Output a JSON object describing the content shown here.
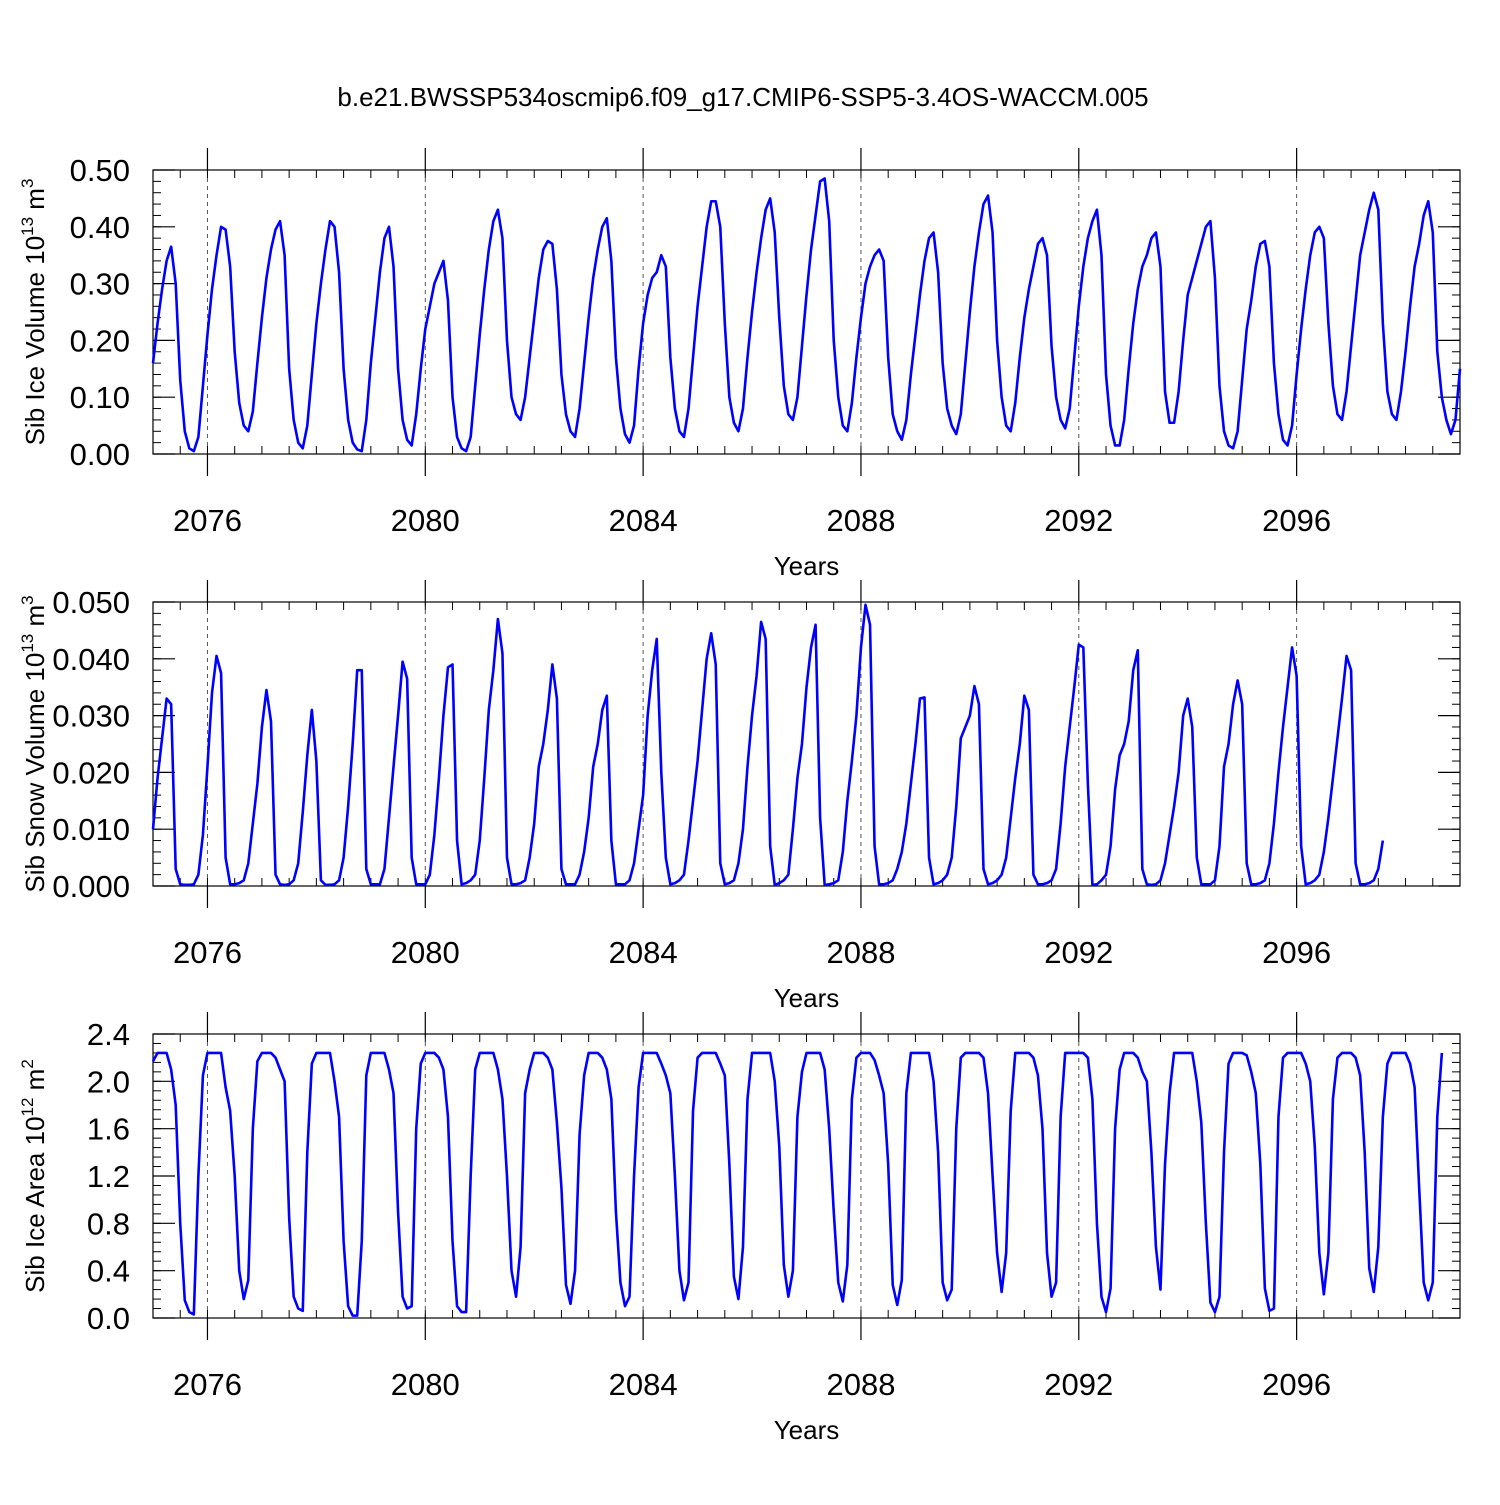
{
  "title": "b.e21.BWSSP534oscmip6.f09_g17.CMIP6-SSP5-3.4OS-WACCM.005",
  "colors": {
    "line": "#0000ff",
    "axis": "#000000",
    "grid": "#555555"
  },
  "chart_data": [
    {
      "type": "line",
      "id": "ice-volume",
      "ylabel": {
        "text": "Sib Ice Volume 10",
        "exp": "13",
        "unit": " m",
        "unit_exp": "3"
      },
      "xlabel": "Years",
      "xlim": [
        2075.0,
        2099.0
      ],
      "ylim": [
        0.0,
        0.5
      ],
      "yticks": [
        0.0,
        0.1,
        0.2,
        0.3,
        0.4,
        0.5
      ],
      "ytick_labels": [
        "0.00",
        "0.10",
        "0.20",
        "0.30",
        "0.40",
        "0.50"
      ],
      "xticks": [
        2076,
        2080,
        2084,
        2088,
        2092,
        2096
      ],
      "xtick_labels": [
        "2076",
        "2080",
        "2084",
        "2088",
        "2092",
        "2096"
      ],
      "grid_x": [
        2076,
        2080,
        2084,
        2088,
        2092,
        2096
      ],
      "start": 2075.0,
      "step": 0.0833333,
      "series": [
        {
          "name": "Sib Ice Volume",
          "values": [
            0.16,
            0.23,
            0.29,
            0.34,
            0.365,
            0.3,
            0.13,
            0.04,
            0.01,
            0.005,
            0.03,
            0.12,
            0.21,
            0.29,
            0.35,
            0.4,
            0.395,
            0.33,
            0.18,
            0.09,
            0.05,
            0.04,
            0.075,
            0.16,
            0.24,
            0.31,
            0.36,
            0.395,
            0.41,
            0.35,
            0.15,
            0.06,
            0.02,
            0.01,
            0.05,
            0.14,
            0.23,
            0.3,
            0.36,
            0.41,
            0.4,
            0.32,
            0.15,
            0.06,
            0.02,
            0.008,
            0.005,
            0.06,
            0.16,
            0.24,
            0.32,
            0.38,
            0.4,
            0.33,
            0.15,
            0.06,
            0.025,
            0.015,
            0.07,
            0.15,
            0.22,
            0.26,
            0.3,
            0.32,
            0.34,
            0.27,
            0.1,
            0.03,
            0.01,
            0.005,
            0.03,
            0.12,
            0.21,
            0.29,
            0.36,
            0.41,
            0.43,
            0.38,
            0.2,
            0.1,
            0.07,
            0.06,
            0.1,
            0.17,
            0.24,
            0.31,
            0.36,
            0.375,
            0.37,
            0.29,
            0.14,
            0.07,
            0.04,
            0.03,
            0.08,
            0.16,
            0.24,
            0.31,
            0.36,
            0.4,
            0.415,
            0.34,
            0.17,
            0.08,
            0.035,
            0.02,
            0.05,
            0.15,
            0.23,
            0.28,
            0.31,
            0.32,
            0.35,
            0.33,
            0.17,
            0.08,
            0.04,
            0.03,
            0.08,
            0.17,
            0.26,
            0.33,
            0.4,
            0.445,
            0.445,
            0.4,
            0.23,
            0.1,
            0.055,
            0.04,
            0.08,
            0.17,
            0.25,
            0.32,
            0.38,
            0.43,
            0.45,
            0.39,
            0.24,
            0.12,
            0.07,
            0.06,
            0.1,
            0.19,
            0.28,
            0.36,
            0.42,
            0.48,
            0.485,
            0.41,
            0.2,
            0.1,
            0.05,
            0.04,
            0.09,
            0.17,
            0.24,
            0.3,
            0.33,
            0.35,
            0.36,
            0.34,
            0.17,
            0.07,
            0.04,
            0.025,
            0.06,
            0.14,
            0.21,
            0.28,
            0.34,
            0.38,
            0.39,
            0.32,
            0.16,
            0.08,
            0.05,
            0.035,
            0.07,
            0.16,
            0.25,
            0.33,
            0.39,
            0.44,
            0.455,
            0.39,
            0.2,
            0.1,
            0.05,
            0.04,
            0.09,
            0.17,
            0.24,
            0.29,
            0.33,
            0.37,
            0.38,
            0.35,
            0.19,
            0.1,
            0.06,
            0.045,
            0.08,
            0.17,
            0.26,
            0.33,
            0.38,
            0.41,
            0.43,
            0.35,
            0.14,
            0.05,
            0.015,
            0.015,
            0.06,
            0.15,
            0.23,
            0.29,
            0.33,
            0.35,
            0.38,
            0.39,
            0.33,
            0.11,
            0.055,
            0.055,
            0.11,
            0.2,
            0.28,
            0.31,
            0.34,
            0.37,
            0.4,
            0.41,
            0.31,
            0.12,
            0.04,
            0.015,
            0.01,
            0.04,
            0.13,
            0.22,
            0.27,
            0.33,
            0.37,
            0.375,
            0.33,
            0.16,
            0.07,
            0.025,
            0.015,
            0.05,
            0.14,
            0.22,
            0.29,
            0.35,
            0.39,
            0.4,
            0.38,
            0.23,
            0.12,
            0.07,
            0.06,
            0.11,
            0.19,
            0.27,
            0.35,
            0.39,
            0.43,
            0.46,
            0.43,
            0.23,
            0.11,
            0.07,
            0.06,
            0.11,
            0.18,
            0.26,
            0.33,
            0.37,
            0.42,
            0.445,
            0.39,
            0.18,
            0.1,
            0.06,
            0.035,
            0.06,
            0.15
          ]
        }
      ]
    },
    {
      "type": "line",
      "id": "snow-volume",
      "ylabel": {
        "text": "Sib Snow Volume 10",
        "exp": "13",
        "unit": " m",
        "unit_exp": "3"
      },
      "xlabel": "Years",
      "xlim": [
        2075.0,
        2099.0
      ],
      "ylim": [
        0.0,
        0.05
      ],
      "yticks": [
        0.0,
        0.01,
        0.02,
        0.03,
        0.04,
        0.05
      ],
      "ytick_labels": [
        "0.000",
        "0.010",
        "0.020",
        "0.030",
        "0.040",
        "0.050"
      ],
      "xticks": [
        2076,
        2080,
        2084,
        2088,
        2092,
        2096
      ],
      "xtick_labels": [
        "2076",
        "2080",
        "2084",
        "2088",
        "2092",
        "2096"
      ],
      "grid_x": [
        2076,
        2080,
        2084,
        2088,
        2092,
        2096
      ],
      "start": 2075.0,
      "step": 0.0833333,
      "series": [
        {
          "name": "Sib Snow Volume",
          "values": [
            0.01,
            0.019,
            0.026,
            0.033,
            0.032,
            0.003,
            0.0003,
            0.0002,
            0.0002,
            0.0003,
            0.002,
            0.009,
            0.021,
            0.034,
            0.0405,
            0.0375,
            0.005,
            0.0003,
            0.0003,
            0.0005,
            0.001,
            0.004,
            0.011,
            0.018,
            0.028,
            0.0345,
            0.029,
            0.002,
            0.0003,
            0.0002,
            0.0003,
            0.001,
            0.004,
            0.013,
            0.023,
            0.031,
            0.022,
            0.001,
            0.0002,
            0.0002,
            0.0003,
            0.001,
            0.005,
            0.014,
            0.025,
            0.038,
            0.038,
            0.003,
            0.0003,
            0.0003,
            0.0003,
            0.003,
            0.012,
            0.021,
            0.03,
            0.0395,
            0.0365,
            0.005,
            0.0003,
            0.0003,
            0.0003,
            0.002,
            0.009,
            0.019,
            0.03,
            0.0385,
            0.039,
            0.008,
            0.0003,
            0.0005,
            0.001,
            0.002,
            0.008,
            0.019,
            0.031,
            0.038,
            0.047,
            0.041,
            0.005,
            0.0003,
            0.0003,
            0.0005,
            0.001,
            0.005,
            0.011,
            0.021,
            0.025,
            0.031,
            0.039,
            0.033,
            0.003,
            0.0003,
            0.0003,
            0.0003,
            0.002,
            0.006,
            0.012,
            0.021,
            0.025,
            0.031,
            0.0335,
            0.008,
            0.0003,
            0.0003,
            0.0003,
            0.001,
            0.004,
            0.01,
            0.016,
            0.03,
            0.038,
            0.0435,
            0.02,
            0.005,
            0.0003,
            0.0005,
            0.001,
            0.002,
            0.008,
            0.015,
            0.022,
            0.031,
            0.04,
            0.0445,
            0.039,
            0.004,
            0.0003,
            0.0005,
            0.001,
            0.004,
            0.01,
            0.021,
            0.03,
            0.037,
            0.0465,
            0.0435,
            0.007,
            0.0002,
            0.0005,
            0.001,
            0.002,
            0.01,
            0.019,
            0.025,
            0.035,
            0.042,
            0.046,
            0.012,
            0.0002,
            0.0003,
            0.0005,
            0.001,
            0.006,
            0.015,
            0.022,
            0.03,
            0.042,
            0.0495,
            0.046,
            0.007,
            0.0003,
            0.0003,
            0.0005,
            0.001,
            0.003,
            0.006,
            0.011,
            0.018,
            0.025,
            0.033,
            0.0332,
            0.005,
            0.0003,
            0.0005,
            0.001,
            0.002,
            0.005,
            0.014,
            0.026,
            0.028,
            0.03,
            0.0352,
            0.032,
            0.003,
            0.0003,
            0.0005,
            0.001,
            0.002,
            0.005,
            0.012,
            0.019,
            0.025,
            0.0335,
            0.031,
            0.002,
            0.0003,
            0.0003,
            0.0005,
            0.001,
            0.003,
            0.011,
            0.021,
            0.028,
            0.035,
            0.0425,
            0.042,
            0.018,
            0.0002,
            0.0003,
            0.001,
            0.002,
            0.007,
            0.017,
            0.023,
            0.025,
            0.029,
            0.038,
            0.0415,
            0.003,
            0.0003,
            0.0002,
            0.0003,
            0.001,
            0.004,
            0.009,
            0.014,
            0.02,
            0.03,
            0.033,
            0.028,
            0.005,
            0.0003,
            0.0003,
            0.0003,
            0.001,
            0.007,
            0.021,
            0.025,
            0.032,
            0.0362,
            0.032,
            0.004,
            0.0003,
            0.0003,
            0.0005,
            0.001,
            0.004,
            0.011,
            0.02,
            0.028,
            0.035,
            0.042,
            0.037,
            0.007,
            0.0003,
            0.0005,
            0.001,
            0.002,
            0.006,
            0.012,
            0.019,
            0.026,
            0.033,
            0.0405,
            0.038,
            0.004,
            0.0003,
            0.0003,
            0.0005,
            0.001,
            0.003,
            0.008
          ]
        }
      ]
    },
    {
      "type": "line",
      "id": "ice-area",
      "ylabel": {
        "text": "Sib Ice Area 10",
        "exp": "12",
        "unit": " m",
        "unit_exp": "2"
      },
      "xlabel": "Years",
      "xlim": [
        2075.0,
        2099.0
      ],
      "ylim": [
        0.0,
        2.4
      ],
      "yticks": [
        0.0,
        0.4,
        0.8,
        1.2,
        1.6,
        2.0,
        2.4
      ],
      "ytick_labels": [
        "0.0",
        "0.4",
        "0.8",
        "1.2",
        "1.6",
        "2.0",
        "2.4"
      ],
      "xticks": [
        2076,
        2080,
        2084,
        2088,
        2092,
        2096
      ],
      "xtick_labels": [
        "2076",
        "2080",
        "2084",
        "2088",
        "2092",
        "2096"
      ],
      "grid_x": [
        2076,
        2080,
        2084,
        2088,
        2092,
        2096
      ],
      "start": 2075.0,
      "step": 0.0833333,
      "series": [
        {
          "name": "Sib Ice Area",
          "values": [
            2.17,
            2.24,
            2.24,
            2.24,
            2.1,
            1.8,
            0.8,
            0.15,
            0.05,
            0.03,
            1.2,
            2.05,
            2.24,
            2.24,
            2.24,
            2.24,
            1.95,
            1.75,
            1.2,
            0.4,
            0.16,
            0.32,
            1.6,
            2.17,
            2.24,
            2.24,
            2.24,
            2.2,
            2.1,
            2.0,
            0.85,
            0.18,
            0.08,
            0.06,
            1.4,
            2.15,
            2.24,
            2.24,
            2.24,
            2.24,
            2.0,
            1.7,
            0.65,
            0.1,
            0.02,
            0.02,
            0.65,
            2.05,
            2.24,
            2.24,
            2.24,
            2.24,
            2.1,
            1.9,
            0.9,
            0.18,
            0.08,
            0.1,
            1.6,
            2.15,
            2.24,
            2.24,
            2.24,
            2.2,
            2.1,
            1.7,
            0.65,
            0.1,
            0.05,
            0.05,
            1.2,
            2.1,
            2.24,
            2.24,
            2.24,
            2.24,
            2.1,
            1.85,
            1.2,
            0.4,
            0.18,
            0.6,
            1.9,
            2.1,
            2.24,
            2.24,
            2.24,
            2.2,
            2.1,
            1.65,
            1.1,
            0.28,
            0.12,
            0.4,
            1.55,
            2.05,
            2.24,
            2.24,
            2.24,
            2.2,
            2.1,
            1.85,
            0.9,
            0.3,
            0.1,
            0.18,
            1.2,
            1.95,
            2.24,
            2.24,
            2.24,
            2.24,
            2.15,
            2.05,
            1.9,
            1.2,
            0.4,
            0.15,
            0.3,
            1.75,
            2.2,
            2.24,
            2.24,
            2.24,
            2.24,
            2.15,
            2.05,
            1.3,
            0.35,
            0.16,
            0.6,
            1.85,
            2.24,
            2.24,
            2.24,
            2.24,
            2.24,
            2.0,
            1.45,
            0.45,
            0.18,
            0.4,
            1.7,
            2.08,
            2.24,
            2.24,
            2.24,
            2.24,
            2.1,
            1.6,
            0.9,
            0.3,
            0.14,
            0.45,
            1.85,
            2.2,
            2.24,
            2.24,
            2.24,
            2.18,
            2.05,
            1.9,
            1.3,
            0.28,
            0.11,
            0.32,
            1.9,
            2.24,
            2.24,
            2.24,
            2.24,
            2.24,
            2.0,
            1.4,
            0.3,
            0.15,
            0.24,
            1.6,
            2.2,
            2.24,
            2.24,
            2.24,
            2.24,
            2.2,
            1.9,
            1.2,
            0.55,
            0.22,
            0.55,
            1.75,
            2.24,
            2.24,
            2.24,
            2.24,
            2.2,
            2.05,
            1.6,
            0.55,
            0.18,
            0.3,
            1.7,
            2.24,
            2.24,
            2.24,
            2.24,
            2.24,
            2.2,
            1.85,
            0.8,
            0.18,
            0.05,
            0.25,
            1.6,
            2.1,
            2.24,
            2.24,
            2.24,
            2.2,
            2.08,
            2.0,
            1.4,
            0.6,
            0.24,
            1.3,
            1.9,
            2.24,
            2.24,
            2.24,
            2.24,
            2.24,
            2.0,
            1.65,
            0.8,
            0.13,
            0.05,
            0.18,
            1.4,
            2.15,
            2.24,
            2.24,
            2.24,
            2.22,
            2.08,
            1.9,
            1.3,
            0.25,
            0.06,
            0.08,
            1.7,
            2.2,
            2.24,
            2.24,
            2.24,
            2.24,
            2.15,
            2.0,
            1.45,
            0.55,
            0.2,
            0.55,
            1.85,
            2.2,
            2.24,
            2.24,
            2.24,
            2.2,
            2.05,
            1.4,
            0.42,
            0.22,
            0.6,
            1.7,
            2.15,
            2.24,
            2.24,
            2.24,
            2.24,
            2.15,
            1.95,
            1.1,
            0.3,
            0.15,
            0.3,
            1.7,
            2.24
          ]
        }
      ]
    }
  ]
}
